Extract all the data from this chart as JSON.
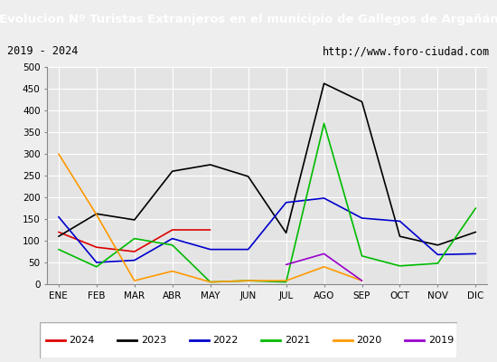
{
  "title": "Evolucion Nº Turistas Extranjeros en el municipio de Gallegos de Argañán",
  "subtitle_left": "2019 - 2024",
  "subtitle_right": "http://www.foro-ciudad.com",
  "title_bg": "#1a6eb4",
  "title_color": "white",
  "months": [
    "ENE",
    "FEB",
    "MAR",
    "ABR",
    "MAY",
    "JUN",
    "JUL",
    "AGO",
    "SEP",
    "OCT",
    "NOV",
    "DIC"
  ],
  "series": {
    "2024": {
      "color": "#dd0000",
      "data": [
        120,
        85,
        75,
        125,
        125,
        null,
        null,
        null,
        null,
        null,
        null,
        null
      ]
    },
    "2023": {
      "color": "#000000",
      "data": [
        110,
        162,
        148,
        260,
        275,
        248,
        118,
        462,
        420,
        110,
        90,
        120
      ]
    },
    "2022": {
      "color": "#0000cc",
      "data": [
        155,
        50,
        55,
        105,
        80,
        80,
        188,
        198,
        152,
        145,
        68,
        70
      ]
    },
    "2021": {
      "color": "#00bb00",
      "data": [
        80,
        40,
        105,
        90,
        5,
        8,
        5,
        370,
        65,
        42,
        48,
        175
      ]
    },
    "2020": {
      "color": "#ff9900",
      "data": [
        300,
        160,
        8,
        30,
        5,
        8,
        8,
        40,
        8,
        null,
        null,
        null
      ]
    },
    "2019": {
      "color": "#9900cc",
      "data": [
        null,
        null,
        null,
        null,
        null,
        null,
        45,
        70,
        8,
        null,
        null,
        null
      ]
    }
  },
  "ylim": [
    0,
    500
  ],
  "yticks": [
    0,
    50,
    100,
    150,
    200,
    250,
    300,
    350,
    400,
    450,
    500
  ],
  "bg_plot": "#e4e4e4",
  "bg_fig": "#eeeeee",
  "grid_color": "#ffffff",
  "legend_order": [
    "2024",
    "2023",
    "2022",
    "2021",
    "2020",
    "2019"
  ],
  "title_fontsize": 9.5,
  "subtitle_fontsize": 8.5,
  "tick_fontsize": 7.5,
  "legend_fontsize": 8
}
